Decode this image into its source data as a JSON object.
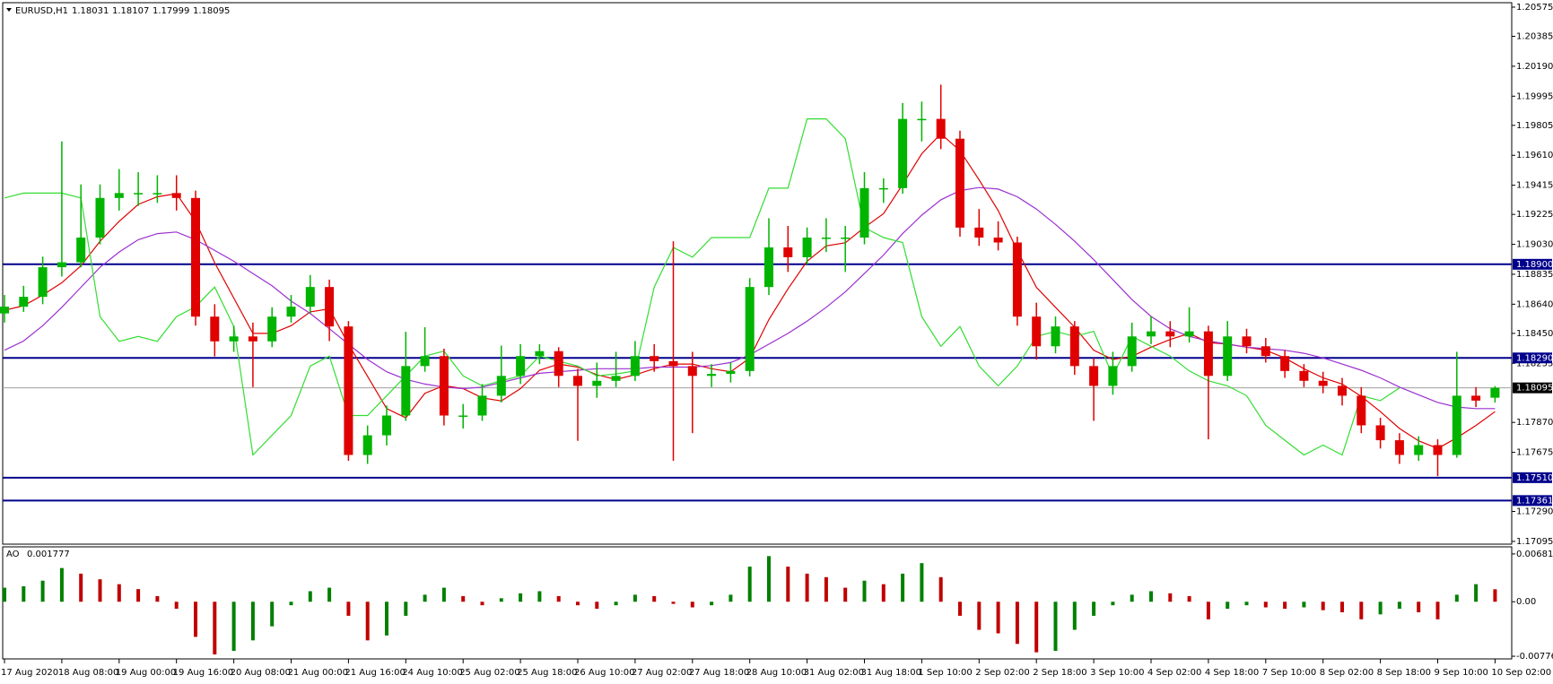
{
  "chart_data": [
    {
      "type": "candlestick",
      "title": "EURUSD,H1",
      "categories": [
        "17 Aug 2020",
        null,
        null,
        "18 Aug 08:00",
        null,
        null,
        "19 Aug 00:00",
        null,
        null,
        "19 Aug 16:00",
        null,
        null,
        "20 Aug 08:00",
        null,
        null,
        "21 Aug 00:00",
        null,
        null,
        "21 Aug 16:00",
        null,
        null,
        "24 Aug 10:00",
        null,
        null,
        "25 Aug 02:00",
        null,
        null,
        "25 Aug 18:00",
        null,
        null,
        "26 Aug 10:00",
        null,
        null,
        "27 Aug 02:00",
        null,
        null,
        "27 Aug 18:00",
        null,
        null,
        "28 Aug 10:00",
        null,
        null,
        "31 Aug 02:00",
        null,
        null,
        "31 Aug 18:00",
        null,
        null,
        "1 Sep 10:00",
        null,
        null,
        "2 Sep 02:00",
        null,
        null,
        "2 Sep 18:00",
        null,
        null,
        "3 Sep 10:00",
        null,
        null,
        "4 Sep 02:00",
        null,
        null,
        "4 Sep 18:00",
        null,
        null,
        "7 Sep 10:00",
        null,
        null,
        "8 Sep 02:00",
        null,
        null,
        "8 Sep 18:00",
        null,
        null,
        "9 Sep 10:00",
        null,
        null,
        "10 Sep 02:00"
      ],
      "candles": [
        [
          1.1858,
          1.187,
          1.1852,
          1.18624
        ],
        [
          1.18624,
          1.1876,
          1.1859,
          1.18688
        ],
        [
          1.18688,
          1.1895,
          1.1864,
          1.18881
        ],
        [
          1.18881,
          1.197,
          1.1882,
          1.18913
        ],
        [
          1.18913,
          1.1942,
          1.1888,
          1.19074
        ],
        [
          1.19074,
          1.1942,
          1.1903,
          1.19332
        ],
        [
          1.19332,
          1.1952,
          1.1925,
          1.19364
        ],
        [
          1.19364,
          1.195,
          1.1928,
          1.19364
        ],
        [
          1.19364,
          1.1948,
          1.193,
          1.19364
        ],
        [
          1.19364,
          1.1948,
          1.1925,
          1.19332
        ],
        [
          1.19332,
          1.1938,
          1.185,
          1.18559
        ],
        [
          1.18559,
          1.1864,
          1.183,
          1.18398
        ],
        [
          1.18398,
          1.185,
          1.1833,
          1.1843
        ],
        [
          1.1843,
          1.1852,
          1.181,
          1.18398
        ],
        [
          1.18398,
          1.1862,
          1.1836,
          1.18559
        ],
        [
          1.18559,
          1.187,
          1.1852,
          1.18624
        ],
        [
          1.18624,
          1.1883,
          1.1858,
          1.18752
        ],
        [
          1.18752,
          1.188,
          1.184,
          1.18495
        ],
        [
          1.18495,
          1.1853,
          1.1762,
          1.17658
        ],
        [
          1.17658,
          1.1785,
          1.176,
          1.17786
        ],
        [
          1.17786,
          1.1798,
          1.1772,
          1.17915
        ],
        [
          1.17915,
          1.1846,
          1.1788,
          1.18237
        ],
        [
          1.18237,
          1.1849,
          1.182,
          1.18302
        ],
        [
          1.18302,
          1.1835,
          1.1785,
          1.17915
        ],
        [
          1.17915,
          1.1799,
          1.1783,
          1.17915
        ],
        [
          1.17915,
          1.1812,
          1.1788,
          1.18044
        ],
        [
          1.18044,
          1.1837,
          1.18,
          1.18173
        ],
        [
          1.18173,
          1.1838,
          1.1812,
          1.18302
        ],
        [
          1.18302,
          1.1838,
          1.1825,
          1.18334
        ],
        [
          1.18334,
          1.1836,
          1.181,
          1.18173
        ],
        [
          1.18173,
          1.1822,
          1.1775,
          1.18108
        ],
        [
          1.18108,
          1.1826,
          1.1803,
          1.18141
        ],
        [
          1.18141,
          1.1833,
          1.181,
          1.18173
        ],
        [
          1.18173,
          1.184,
          1.1814,
          1.18302
        ],
        [
          1.18302,
          1.1838,
          1.182,
          1.18269
        ],
        [
          1.18269,
          1.1905,
          1.1762,
          1.18237
        ],
        [
          1.18237,
          1.1833,
          1.178,
          1.18173
        ],
        [
          1.18173,
          1.1825,
          1.181,
          1.18186
        ],
        [
          1.18186,
          1.1826,
          1.1813,
          1.18205
        ],
        [
          1.18205,
          1.1881,
          1.1817,
          1.18752
        ],
        [
          1.18752,
          1.192,
          1.187,
          1.1901
        ],
        [
          1.1901,
          1.1915,
          1.1885,
          1.18946
        ],
        [
          1.18946,
          1.1914,
          1.189,
          1.19074
        ],
        [
          1.19074,
          1.192,
          1.1898,
          1.19074
        ],
        [
          1.19074,
          1.1915,
          1.1885,
          1.19074
        ],
        [
          1.19074,
          1.195,
          1.1903,
          1.19396
        ],
        [
          1.19396,
          1.1946,
          1.193,
          1.19396
        ],
        [
          1.19396,
          1.1995,
          1.1936,
          1.19847
        ],
        [
          1.19847,
          1.1996,
          1.197,
          1.19847
        ],
        [
          1.19847,
          1.2007,
          1.1965,
          1.19718
        ],
        [
          1.19718,
          1.1977,
          1.1908,
          1.19139
        ],
        [
          1.19139,
          1.1926,
          1.1902,
          1.19074
        ],
        [
          1.19074,
          1.1918,
          1.1899,
          1.19042
        ],
        [
          1.19042,
          1.1908,
          1.185,
          1.18559
        ],
        [
          1.18559,
          1.1865,
          1.1828,
          1.18366
        ],
        [
          1.18366,
          1.1856,
          1.1832,
          1.18495
        ],
        [
          1.18495,
          1.1853,
          1.1818,
          1.18237
        ],
        [
          1.18237,
          1.1829,
          1.1788,
          1.18108
        ],
        [
          1.18108,
          1.1833,
          1.1805,
          1.18237
        ],
        [
          1.18237,
          1.1852,
          1.182,
          1.1843
        ],
        [
          1.1843,
          1.1856,
          1.1838,
          1.18463
        ],
        [
          1.18463,
          1.1853,
          1.1836,
          1.1843
        ],
        [
          1.1843,
          1.1862,
          1.1839,
          1.18463
        ],
        [
          1.18463,
          1.185,
          1.1776,
          1.18173
        ],
        [
          1.18173,
          1.1853,
          1.1814,
          1.1843
        ],
        [
          1.1843,
          1.1848,
          1.1832,
          1.18366
        ],
        [
          1.18366,
          1.1842,
          1.1826,
          1.18302
        ],
        [
          1.18302,
          1.1834,
          1.1816,
          1.18205
        ],
        [
          1.18205,
          1.1825,
          1.181,
          1.18141
        ],
        [
          1.18141,
          1.182,
          1.1806,
          1.18108
        ],
        [
          1.18108,
          1.1816,
          1.1798,
          1.18044
        ],
        [
          1.18044,
          1.181,
          1.178,
          1.17851
        ],
        [
          1.17851,
          1.179,
          1.177,
          1.17754
        ],
        [
          1.17754,
          1.178,
          1.176,
          1.17658
        ],
        [
          1.17658,
          1.1778,
          1.1762,
          1.17722
        ],
        [
          1.17722,
          1.1776,
          1.1752,
          1.17658
        ],
        [
          1.17658,
          1.1833,
          1.1764,
          1.18044
        ],
        [
          1.18044,
          1.181,
          1.1797,
          1.18012
        ],
        [
          1.18031,
          1.18107,
          1.17999,
          1.18095
        ]
      ],
      "up_color": "#00b400",
      "down_color": "#e00000",
      "series": [
        {
          "color": "#e00000",
          "values": [
            1.186,
            1.1863,
            1.187,
            1.1878,
            1.1889,
            1.1905,
            1.1918,
            1.1929,
            1.1934,
            1.1936,
            1.1918,
            1.1891,
            1.1868,
            1.1845,
            1.1845,
            1.185,
            1.1859,
            1.1861,
            1.1838,
            1.1817,
            1.1796,
            1.179,
            1.1806,
            1.1811,
            1.1809,
            1.1803,
            1.1801,
            1.1809,
            1.1821,
            1.1825,
            1.1823,
            1.1818,
            1.1815,
            1.1818,
            1.1822,
            1.1825,
            1.1825,
            1.1822,
            1.182,
            1.1829,
            1.1854,
            1.1874,
            1.1892,
            1.1902,
            1.1904,
            1.1914,
            1.1923,
            1.1942,
            1.1962,
            1.1975,
            1.1964,
            1.1945,
            1.1925,
            1.1899,
            1.1875,
            1.1862,
            1.1849,
            1.1834,
            1.1828,
            1.183,
            1.1836,
            1.1841,
            1.1845,
            1.1839,
            1.1838,
            1.1836,
            1.1834,
            1.1829,
            1.1822,
            1.1816,
            1.1812,
            1.1804,
            1.1794,
            1.1783,
            1.1775,
            1.177,
            1.1777,
            1.1785,
            1.1794
          ]
        },
        {
          "color": "#9b30d0",
          "values": [
            1.1834,
            1.184,
            1.185,
            1.1862,
            1.1875,
            1.1888,
            1.1898,
            1.1906,
            1.191,
            1.1911,
            1.1906,
            1.1899,
            1.1892,
            1.1884,
            1.1876,
            1.1866,
            1.1858,
            1.1848,
            1.1838,
            1.1828,
            1.182,
            1.1815,
            1.1812,
            1.181,
            1.1809,
            1.181,
            1.1813,
            1.1816,
            1.1819,
            1.182,
            1.1821,
            1.1822,
            1.1822,
            1.1822,
            1.1823,
            1.1823,
            1.1823,
            1.1824,
            1.1826,
            1.1831,
            1.1838,
            1.1845,
            1.1853,
            1.1862,
            1.1872,
            1.1884,
            1.1896,
            1.191,
            1.1922,
            1.1932,
            1.1938,
            1.194,
            1.1939,
            1.1934,
            1.1926,
            1.1916,
            1.1905,
            1.1893,
            1.188,
            1.1867,
            1.1856,
            1.1848,
            1.1843,
            1.184,
            1.1838,
            1.1836,
            1.1835,
            1.1834,
            1.1832,
            1.1829,
            1.1825,
            1.1821,
            1.1816,
            1.181,
            1.1805,
            1.18,
            1.1797,
            1.1796,
            1.1796
          ]
        },
        {
          "color": "#33dd33",
          "values": [
            1.19332,
            1.19364,
            1.19364,
            1.19364,
            1.19332,
            1.18559,
            1.18398,
            1.1843,
            1.18398,
            1.18559,
            1.18624,
            1.18752,
            1.18495,
            1.17658,
            1.17786,
            1.17915,
            1.18237,
            1.18302,
            1.17915,
            1.17915,
            1.18044,
            1.18173,
            1.18302,
            1.18334,
            1.18173,
            1.18108,
            1.18141,
            1.18173,
            1.18302,
            1.18269,
            1.18237,
            1.18173,
            1.18186,
            1.18205,
            1.18752,
            1.1901,
            1.18946,
            1.19074,
            1.19074,
            1.19074,
            1.19396,
            1.19396,
            1.19847,
            1.19847,
            1.19718,
            1.19139,
            1.19074,
            1.19042,
            1.18559,
            1.18366,
            1.18495,
            1.18237,
            1.18108,
            1.18237,
            1.1843,
            1.18463,
            1.1843,
            1.18463,
            1.18173,
            1.1843,
            1.18366,
            1.18302,
            1.18205,
            1.18141,
            1.18108,
            1.18044,
            1.17851,
            1.17754,
            1.17658,
            1.17722,
            1.17658,
            1.18044,
            1.18012,
            1.18095,
            null,
            null,
            null,
            null,
            null
          ]
        }
      ],
      "levels": [
        {
          "value": 1.189,
          "label": "1.18900"
        },
        {
          "value": 1.1829,
          "label": "1.18290"
        },
        {
          "value": 1.1751,
          "label": "1.17510"
        },
        {
          "value": 1.17361,
          "label": "1.17361"
        }
      ],
      "level_color": "#00008c",
      "ylim": [
        1.17077,
        1.20604
      ],
      "yticks": [
        1.20575,
        1.20385,
        {
          "value": 1.2019,
          "label": "1.20190"
        },
        1.19995,
        1.19805,
        {
          "value": 1.1961,
          "label": "1.19610"
        },
        1.19415,
        1.19225,
        {
          "value": 1.1903,
          "label": "1.19030"
        },
        1.18835,
        {
          "value": 1.1864,
          "label": "1.18640"
        },
        {
          "value": 1.1845,
          "label": "1.18450"
        },
        1.18255,
        {
          "value": 1.1787,
          "label": "1.17870"
        },
        1.17675,
        {
          "value": 1.1729,
          "label": "1.17290"
        },
        1.17095
      ]
    },
    {
      "type": "bar",
      "title": "AO",
      "up_color": "#008000",
      "down_color": "#c00000",
      "values": [
        0.002,
        0.0022,
        0.003,
        0.0048,
        0.004,
        0.0032,
        0.0025,
        0.0018,
        0.0008,
        -0.001,
        -0.005,
        -0.0075,
        -0.007,
        -0.0055,
        -0.0035,
        -0.0005,
        0.0015,
        0.002,
        -0.002,
        -0.0055,
        -0.0048,
        -0.002,
        0.001,
        0.002,
        0.0008,
        -0.0005,
        0.0005,
        0.0012,
        0.0015,
        0.0008,
        -0.0005,
        -0.001,
        -0.0005,
        0.001,
        0.0008,
        -0.0003,
        -0.0008,
        -0.0005,
        0.001,
        0.005,
        0.0065,
        0.005,
        0.004,
        0.0035,
        0.002,
        0.003,
        0.0025,
        0.004,
        0.0055,
        0.0035,
        -0.002,
        -0.004,
        -0.0045,
        -0.006,
        -0.0072,
        -0.007,
        -0.004,
        -0.002,
        -0.0005,
        0.001,
        0.0015,
        0.0012,
        0.0008,
        -0.0025,
        -0.001,
        -0.0005,
        -0.0008,
        -0.001,
        -0.0008,
        -0.0012,
        -0.0015,
        -0.0025,
        -0.0018,
        -0.001,
        -0.0015,
        -0.0025,
        0.001,
        0.0025,
        0.001777
      ],
      "ylim": [
        -0.00814,
        0.00782
      ],
      "yticks": [
        0.00681,
        {
          "value": 0,
          "label": "0.00"
        },
        -0.007762
      ]
    }
  ]
}
